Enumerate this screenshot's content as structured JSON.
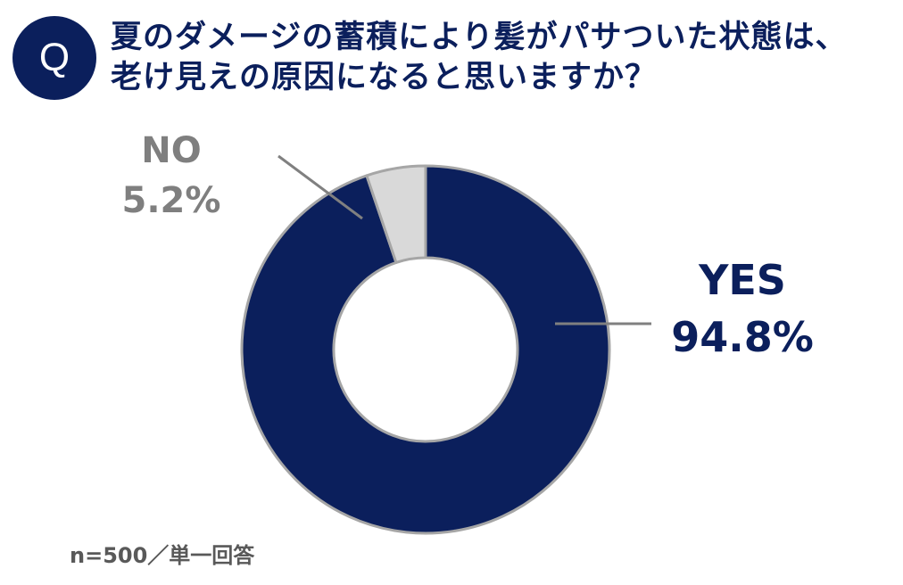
{
  "question": {
    "badge": "Q",
    "line1": "夏のダメージの蓄積により髪がパサついた状態は、",
    "line2": "老け見えの原因になると思いますか？"
  },
  "chart_data": {
    "type": "pie",
    "donut": true,
    "slices": [
      {
        "label": "YES",
        "value": 94.8,
        "value_label": "94.8%",
        "color": "#0b1f5c",
        "label_color": "#0b1f5c"
      },
      {
        "label": "NO",
        "value": 5.2,
        "value_label": "5.2%",
        "color": "#d9d9d9",
        "label_color": "#7f7f7f"
      }
    ],
    "leader_color": "#808080"
  },
  "footnote": "n=500／単一回答"
}
